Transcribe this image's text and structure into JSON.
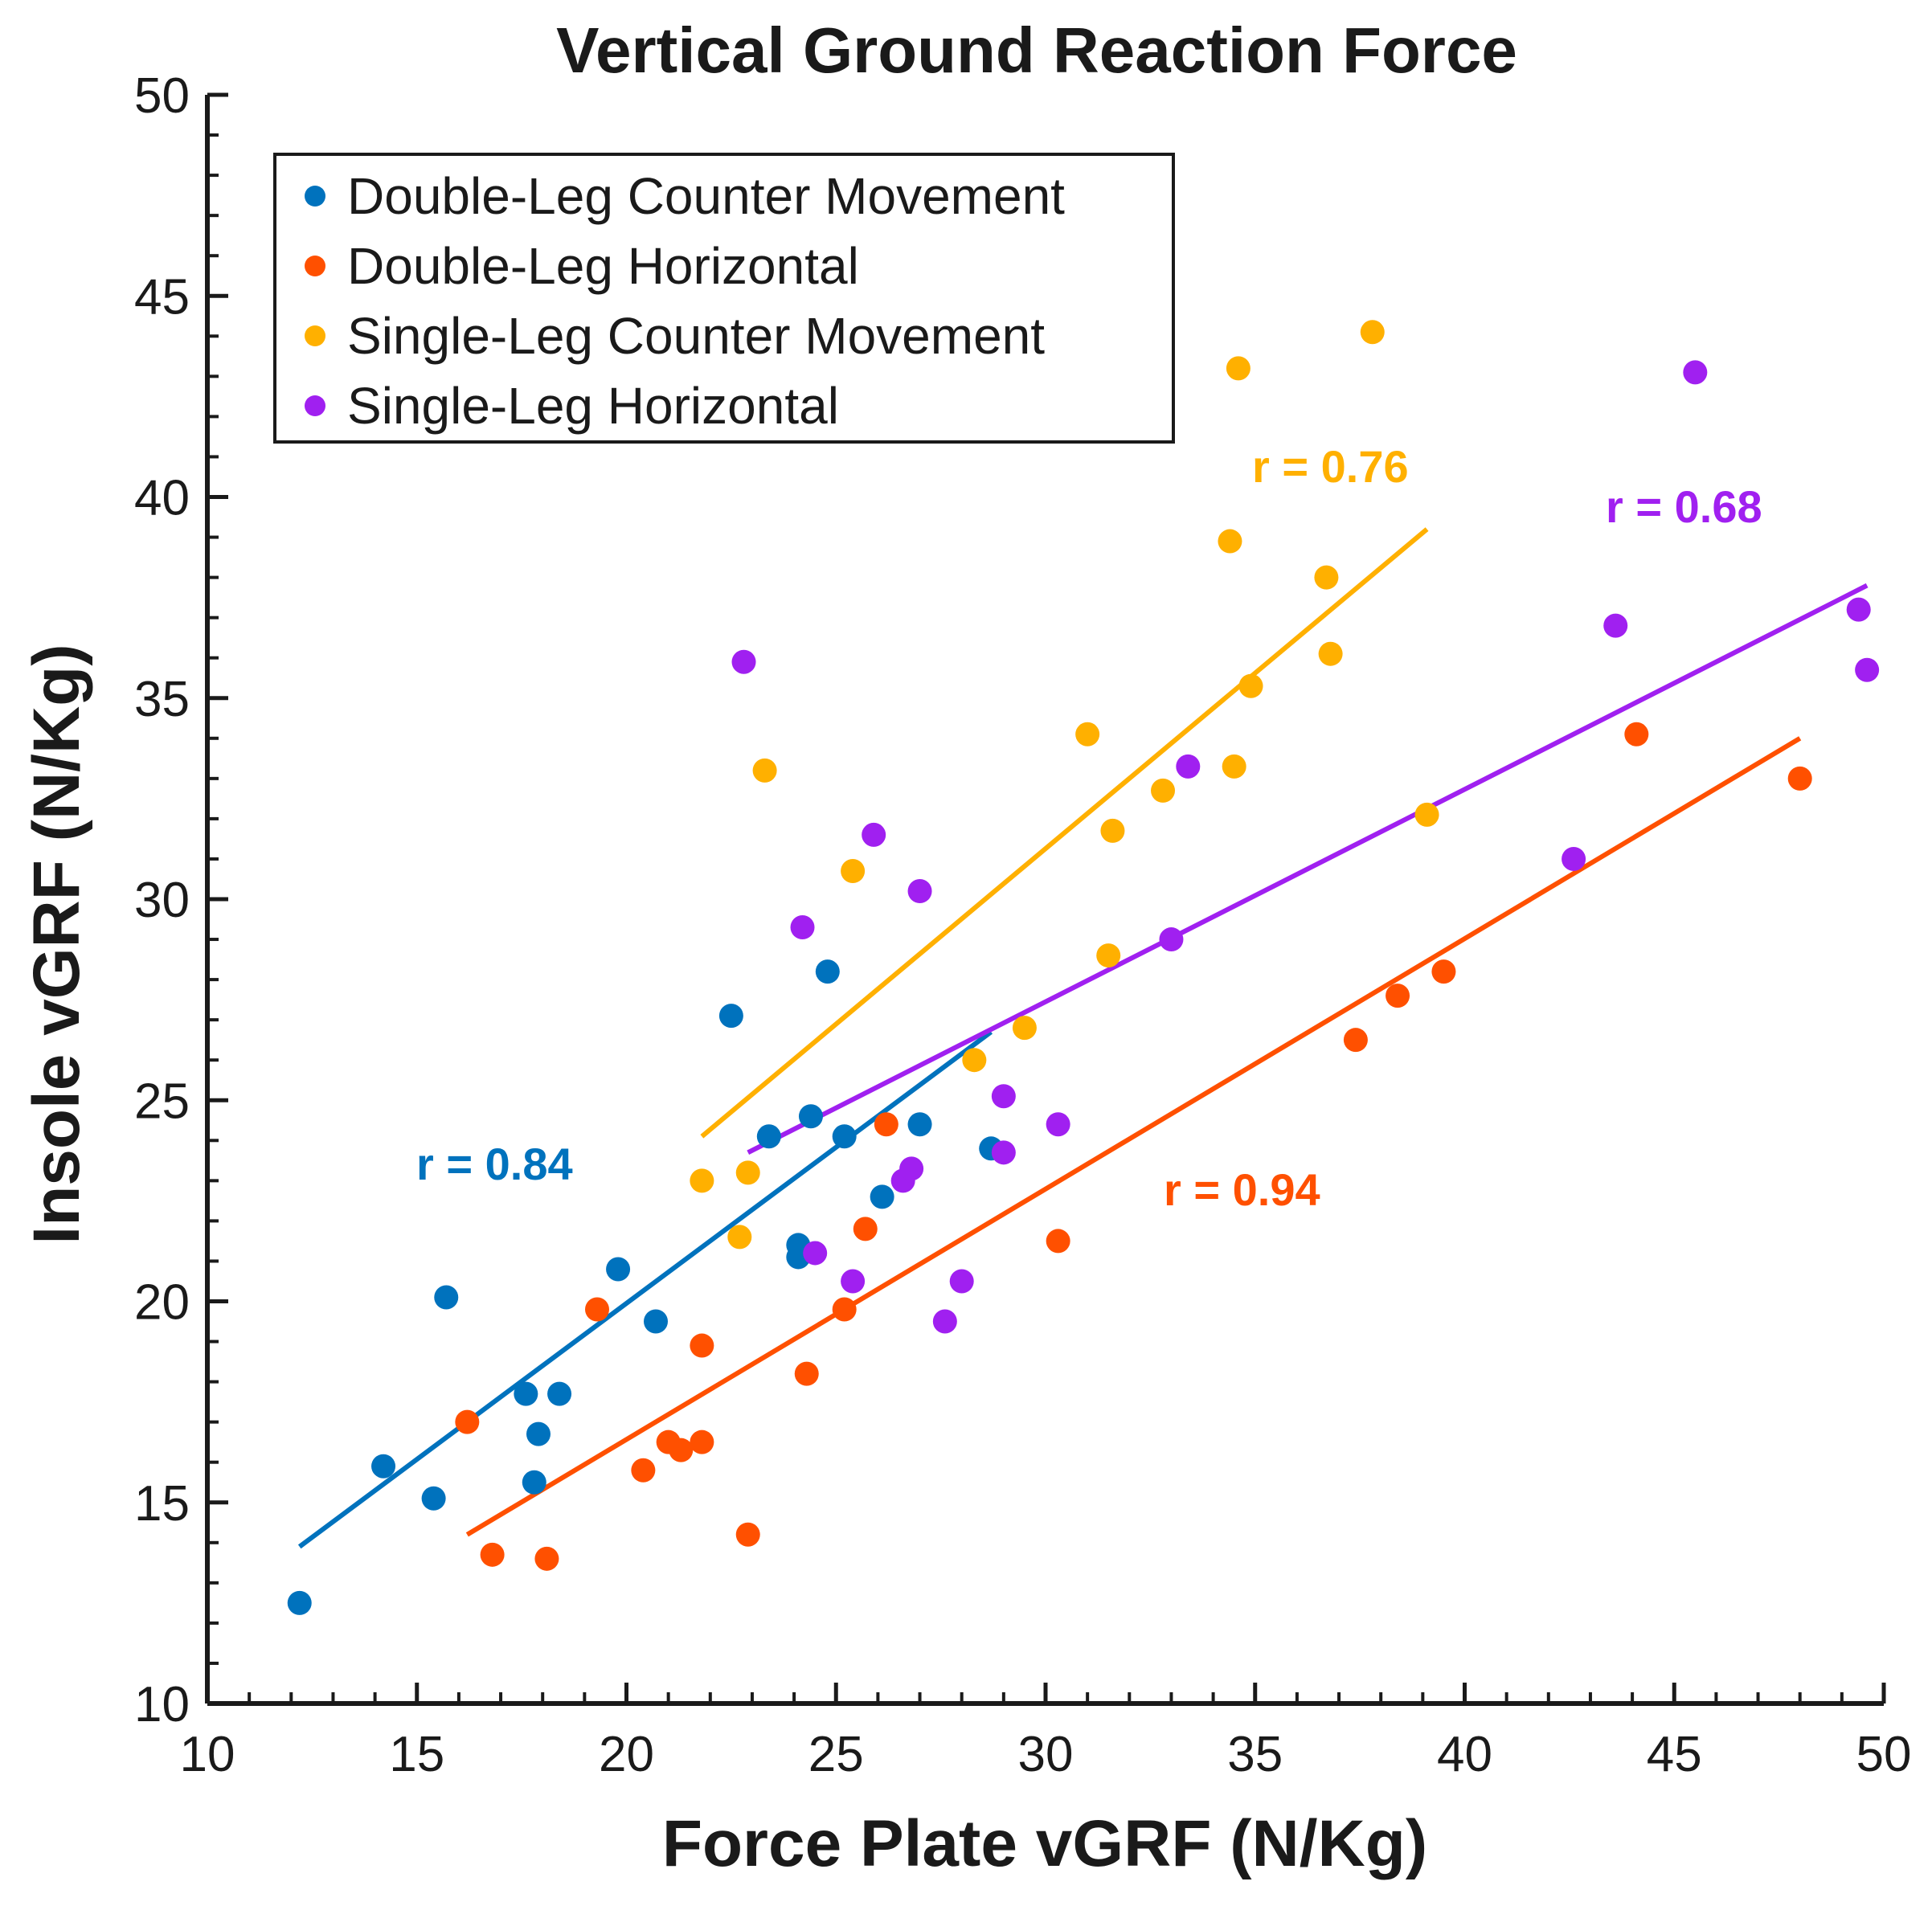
{
  "chart_data": {
    "type": "scatter",
    "title": "Vertical Ground Reaction Force",
    "xlabel": "Force Plate vGRF (N/Kg)",
    "ylabel": "Insole vGRF (N/Kg)",
    "xlim": [
      10,
      50
    ],
    "ylim": [
      10,
      50
    ],
    "xticks": [
      "10",
      "15",
      "20",
      "25",
      "30",
      "35",
      "40",
      "45",
      "50"
    ],
    "yticks": [
      "10",
      "15",
      "20",
      "25",
      "30",
      "35",
      "40",
      "45",
      "50"
    ],
    "legend_position": "top-left",
    "series": [
      {
        "name": "Double-Leg Counter Movement",
        "color": "#0072BD",
        "r_label": "r = 0.84",
        "fit": {
          "x": [
            12.2,
            28.7
          ],
          "y": [
            13.9,
            26.7
          ]
        },
        "points": [
          {
            "x": 12.2,
            "y": 12.5
          },
          {
            "x": 14.2,
            "y": 15.9
          },
          {
            "x": 15.4,
            "y": 15.1
          },
          {
            "x": 15.7,
            "y": 20.1
          },
          {
            "x": 17.6,
            "y": 17.7
          },
          {
            "x": 17.8,
            "y": 15.5
          },
          {
            "x": 17.9,
            "y": 16.7
          },
          {
            "x": 18.4,
            "y": 17.7
          },
          {
            "x": 19.8,
            "y": 20.8
          },
          {
            "x": 20.7,
            "y": 19.5
          },
          {
            "x": 22.5,
            "y": 27.1
          },
          {
            "x": 23.4,
            "y": 24.1
          },
          {
            "x": 24.1,
            "y": 21.4
          },
          {
            "x": 24.1,
            "y": 21.1
          },
          {
            "x": 24.4,
            "y": 24.6
          },
          {
            "x": 24.8,
            "y": 28.2
          },
          {
            "x": 25.2,
            "y": 24.1
          },
          {
            "x": 26.1,
            "y": 22.6
          },
          {
            "x": 27.0,
            "y": 24.4
          },
          {
            "x": 28.7,
            "y": 23.8
          }
        ]
      },
      {
        "name": "Double-Leg Horizontal",
        "color": "#FF5000",
        "r_label": "r = 0.94",
        "fit": {
          "x": [
            16.2,
            48.0
          ],
          "y": [
            14.2,
            34.0
          ]
        },
        "points": [
          {
            "x": 16.2,
            "y": 17.0
          },
          {
            "x": 16.8,
            "y": 13.7
          },
          {
            "x": 18.1,
            "y": 13.6
          },
          {
            "x": 19.3,
            "y": 19.8
          },
          {
            "x": 20.4,
            "y": 15.8
          },
          {
            "x": 21.0,
            "y": 16.5
          },
          {
            "x": 21.3,
            "y": 16.3
          },
          {
            "x": 21.8,
            "y": 18.9
          },
          {
            "x": 21.8,
            "y": 16.5
          },
          {
            "x": 22.9,
            "y": 14.2
          },
          {
            "x": 24.3,
            "y": 18.2
          },
          {
            "x": 25.2,
            "y": 19.8
          },
          {
            "x": 25.7,
            "y": 21.8
          },
          {
            "x": 26.2,
            "y": 24.4
          },
          {
            "x": 30.3,
            "y": 21.5
          },
          {
            "x": 37.4,
            "y": 26.5
          },
          {
            "x": 38.4,
            "y": 27.6
          },
          {
            "x": 39.5,
            "y": 28.2
          },
          {
            "x": 44.1,
            "y": 34.1
          },
          {
            "x": 48.0,
            "y": 33.0
          }
        ]
      },
      {
        "name": "Single-Leg Counter Movement",
        "color": "#FFB000",
        "r_label": "r = 0.76",
        "fit": {
          "x": [
            21.8,
            39.1
          ],
          "y": [
            24.1,
            39.2
          ]
        },
        "points": [
          {
            "x": 21.8,
            "y": 23.0
          },
          {
            "x": 22.7,
            "y": 21.6
          },
          {
            "x": 22.9,
            "y": 23.2
          },
          {
            "x": 23.3,
            "y": 33.2
          },
          {
            "x": 25.4,
            "y": 30.7
          },
          {
            "x": 28.3,
            "y": 26.0
          },
          {
            "x": 29.5,
            "y": 26.8
          },
          {
            "x": 31.0,
            "y": 34.1
          },
          {
            "x": 31.5,
            "y": 28.6
          },
          {
            "x": 31.6,
            "y": 31.7
          },
          {
            "x": 32.8,
            "y": 32.7
          },
          {
            "x": 34.4,
            "y": 38.9
          },
          {
            "x": 34.5,
            "y": 33.3
          },
          {
            "x": 34.6,
            "y": 43.2
          },
          {
            "x": 34.9,
            "y": 35.3
          },
          {
            "x": 36.7,
            "y": 38.0
          },
          {
            "x": 36.8,
            "y": 36.1
          },
          {
            "x": 37.8,
            "y": 44.1
          },
          {
            "x": 39.1,
            "y": 32.1
          }
        ]
      },
      {
        "name": "Single-Leg Horizontal",
        "color": "#A020F0",
        "r_label": "r = 0.68",
        "fit": {
          "x": [
            22.9,
            49.6
          ],
          "y": [
            23.7,
            37.8
          ]
        },
        "points": [
          {
            "x": 22.8,
            "y": 35.9
          },
          {
            "x": 24.2,
            "y": 29.3
          },
          {
            "x": 24.5,
            "y": 21.2
          },
          {
            "x": 25.4,
            "y": 20.5
          },
          {
            "x": 25.9,
            "y": 31.6
          },
          {
            "x": 26.6,
            "y": 23.0
          },
          {
            "x": 26.8,
            "y": 23.3
          },
          {
            "x": 27.0,
            "y": 30.2
          },
          {
            "x": 27.6,
            "y": 19.5
          },
          {
            "x": 28.0,
            "y": 20.5
          },
          {
            "x": 29.0,
            "y": 25.1
          },
          {
            "x": 29.0,
            "y": 23.7
          },
          {
            "x": 30.3,
            "y": 24.4
          },
          {
            "x": 33.0,
            "y": 29.0
          },
          {
            "x": 33.4,
            "y": 33.3
          },
          {
            "x": 42.6,
            "y": 31.0
          },
          {
            "x": 43.6,
            "y": 36.8
          },
          {
            "x": 45.5,
            "y": 43.1
          },
          {
            "x": 49.4,
            "y": 37.2
          },
          {
            "x": 49.6,
            "y": 35.7
          }
        ]
      }
    ]
  }
}
